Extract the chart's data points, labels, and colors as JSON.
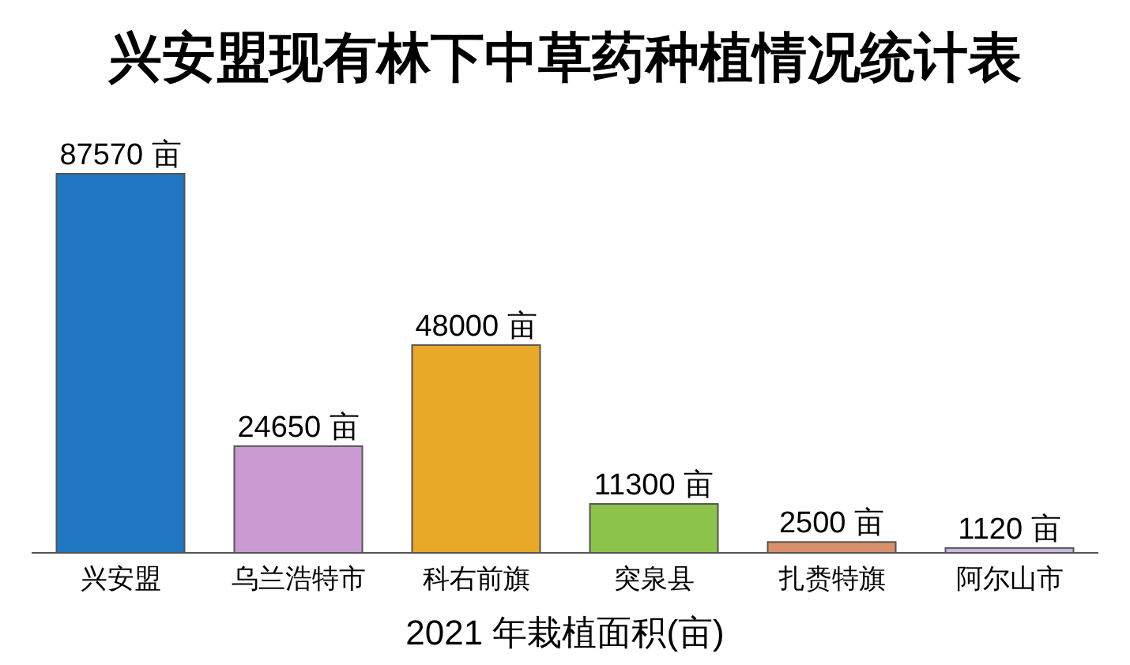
{
  "chart_data": {
    "type": "bar",
    "title": "兴安盟现有林下中草药种植情况统计表",
    "xlabel": "2021 年栽植面积(亩)",
    "categories": [
      "兴安盟",
      "乌兰浩特市",
      "科右前旗",
      "突泉县",
      "扎赉特旗",
      "阿尔山市"
    ],
    "values": [
      87570,
      24650,
      48000,
      11300,
      2500,
      1120
    ],
    "value_labels": [
      "87570 亩",
      "24650 亩",
      "48000 亩",
      "11300 亩",
      "2500 亩",
      "1120 亩"
    ],
    "colors": [
      "#1f78c1",
      "#c99bd2",
      "#e8a928",
      "#8cc34b",
      "#d9916b",
      "#c8b8e2"
    ]
  }
}
